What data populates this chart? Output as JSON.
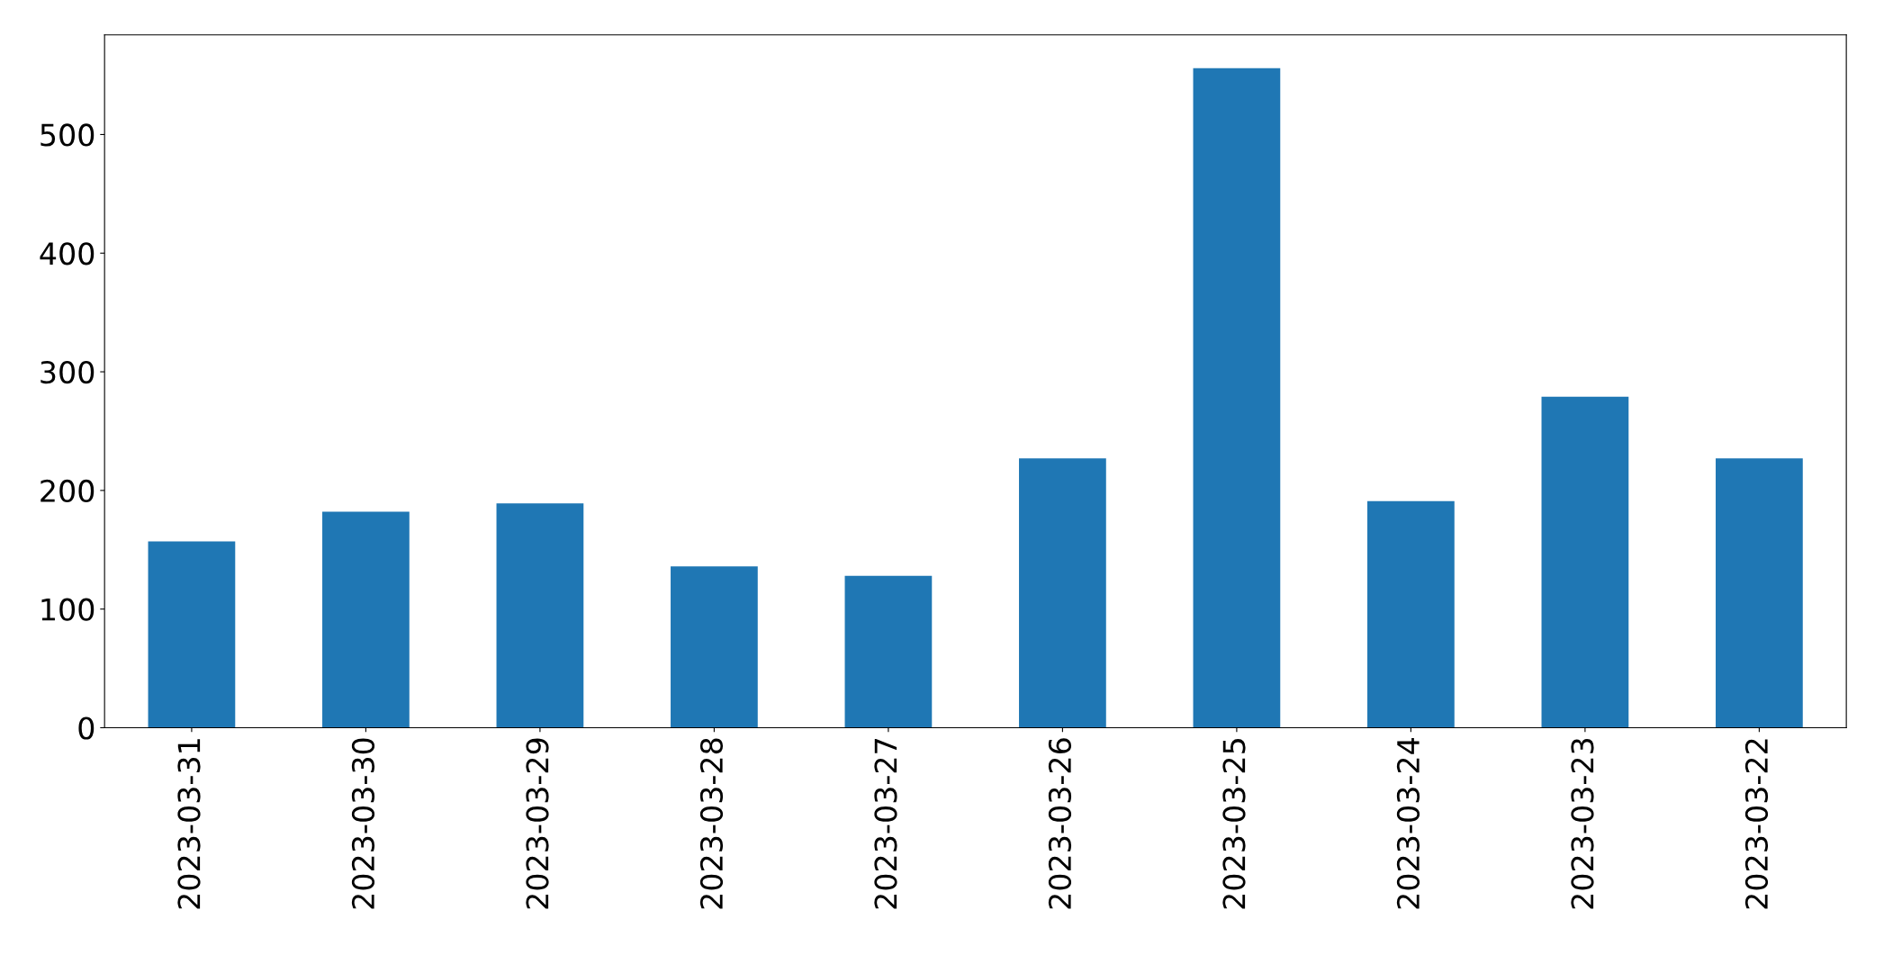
{
  "chart_data": {
    "type": "bar",
    "categories": [
      "2023-03-31",
      "2023-03-30",
      "2023-03-29",
      "2023-03-28",
      "2023-03-27",
      "2023-03-26",
      "2023-03-25",
      "2023-03-24",
      "2023-03-23",
      "2023-03-22"
    ],
    "values": [
      157,
      182,
      189,
      136,
      128,
      227,
      556,
      191,
      279,
      227
    ],
    "color": "#1f77b4",
    "ylim": [
      0,
      584
    ],
    "yticks": [
      0,
      100,
      200,
      300,
      400,
      500
    ],
    "grid": false,
    "legend": false
  }
}
